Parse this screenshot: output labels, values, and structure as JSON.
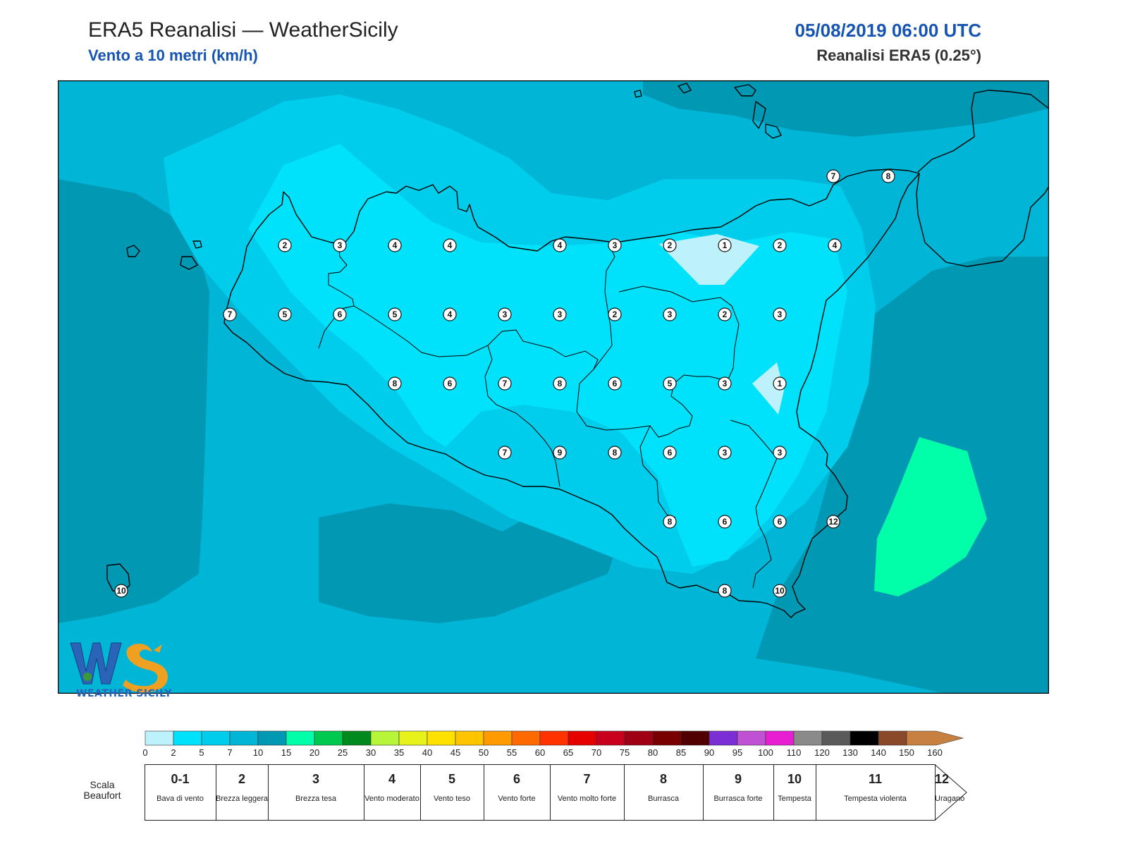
{
  "header": {
    "title": "ERA5 Reanalisi — WeatherSicily",
    "subtitle": "Vento a 10 metri (km/h)",
    "datetime": "05/08/2019 06:00 UTC",
    "model": "Reanalisi ERA5 (0.25°)"
  },
  "logo": {
    "text": "WEATHER SICILY"
  },
  "colors": {
    "wind_0_2": "#bdf2fc",
    "wind_2_5": "#00e1fb",
    "wind_5_7": "#00cdeb",
    "wind_7_10": "#00b5d5",
    "wind_10_15": "#0098b3",
    "wind_15_20": "#00ffa8",
    "coastline": "#000000"
  },
  "stations": [
    {
      "value": "7"
    },
    {
      "value": "8"
    },
    {
      "value": "2"
    },
    {
      "value": "3"
    },
    {
      "value": "4"
    },
    {
      "value": "4"
    },
    {
      "value": "4"
    },
    {
      "value": "3"
    },
    {
      "value": "2"
    },
    {
      "value": "1"
    },
    {
      "value": "2"
    },
    {
      "value": "4"
    },
    {
      "value": "7"
    },
    {
      "value": "5"
    },
    {
      "value": "6"
    },
    {
      "value": "5"
    },
    {
      "value": "4"
    },
    {
      "value": "3"
    },
    {
      "value": "3"
    },
    {
      "value": "2"
    },
    {
      "value": "3"
    },
    {
      "value": "2"
    },
    {
      "value": "3"
    },
    {
      "value": "8"
    },
    {
      "value": "6"
    },
    {
      "value": "7"
    },
    {
      "value": "8"
    },
    {
      "value": "6"
    },
    {
      "value": "5"
    },
    {
      "value": "3"
    },
    {
      "value": "1"
    },
    {
      "value": "7"
    },
    {
      "value": "9"
    },
    {
      "value": "8"
    },
    {
      "value": "6"
    },
    {
      "value": "3"
    },
    {
      "value": "3"
    },
    {
      "value": "8"
    },
    {
      "value": "6"
    },
    {
      "value": "6"
    },
    {
      "value": "12"
    },
    {
      "value": "8"
    },
    {
      "value": "10"
    },
    {
      "value": "10"
    }
  ],
  "colorbar": {
    "ticks": [
      "0",
      "2",
      "5",
      "7",
      "10",
      "15",
      "20",
      "25",
      "30",
      "35",
      "40",
      "45",
      "50",
      "55",
      "60",
      "65",
      "70",
      "75",
      "80",
      "85",
      "90",
      "95",
      "100",
      "110",
      "120",
      "130",
      "140",
      "150",
      "160"
    ],
    "colors": [
      "#bdf2fc",
      "#00e1fb",
      "#00cdeb",
      "#00b5d5",
      "#0098b3",
      "#00ffa8",
      "#00c950",
      "#008a1e",
      "#b6f53a",
      "#e6f21a",
      "#ffe100",
      "#ffc400",
      "#ff9a00",
      "#ff6a00",
      "#ff3200",
      "#e60000",
      "#c8001e",
      "#a00014",
      "#780000",
      "#500000",
      "#7a2ed4",
      "#c050d4",
      "#e81ed2",
      "#8a8a8a",
      "#5a5a5a",
      "#000000",
      "#8a4a2a",
      "#c88040"
    ]
  },
  "beaufort": {
    "label": "Scala Beaufort",
    "classes": [
      {
        "num": "0-1",
        "desc": "Bava di vento"
      },
      {
        "num": "2",
        "desc": "Brezza leggera"
      },
      {
        "num": "3",
        "desc": "Brezza tesa"
      },
      {
        "num": "4",
        "desc": "Vento moderato"
      },
      {
        "num": "5",
        "desc": "Vento teso"
      },
      {
        "num": "6",
        "desc": "Vento forte"
      },
      {
        "num": "7",
        "desc": "Vento molto forte"
      },
      {
        "num": "8",
        "desc": "Burrasca"
      },
      {
        "num": "9",
        "desc": "Burrasca forte"
      },
      {
        "num": "10",
        "desc": "Tempesta"
      },
      {
        "num": "11",
        "desc": "Tempesta violenta"
      },
      {
        "num": "12",
        "desc": "Uragano"
      }
    ]
  }
}
